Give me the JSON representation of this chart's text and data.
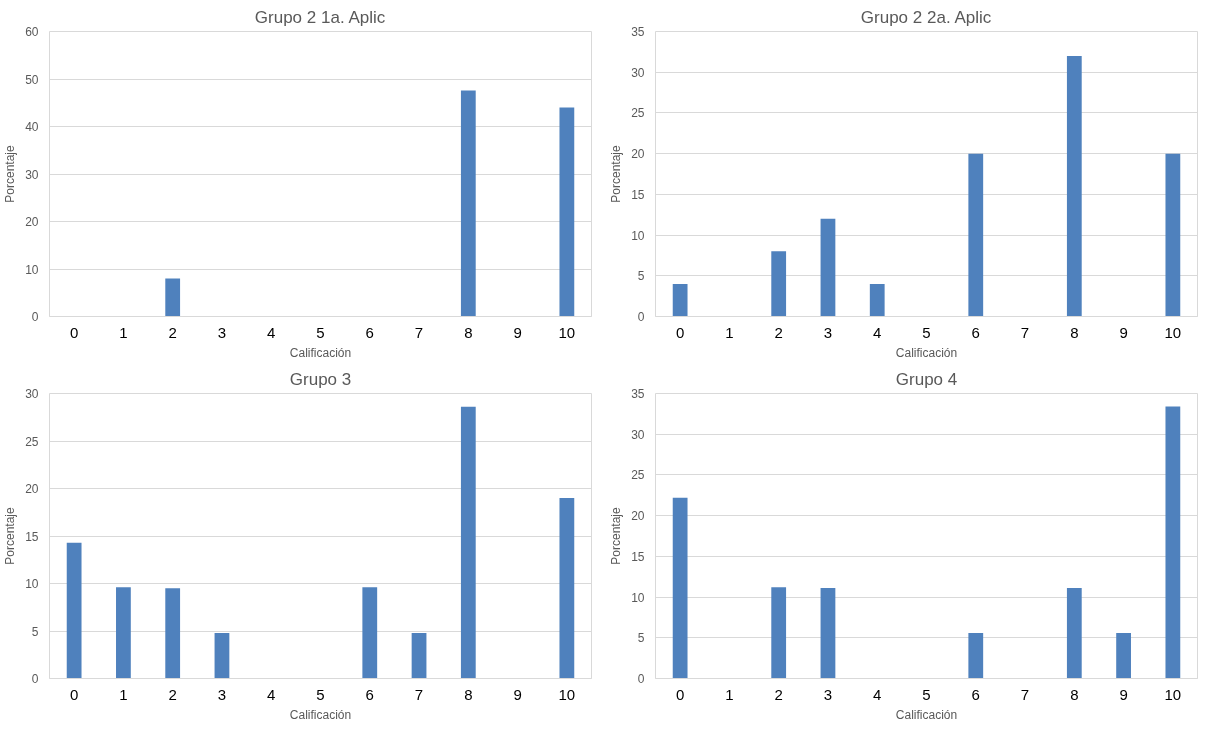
{
  "chart_data": [
    {
      "type": "bar",
      "title": "Grupo 2 1a. Aplic",
      "xlabel": "Calificación",
      "ylabel": "Porcentaje",
      "categories": [
        "0",
        "1",
        "2",
        "3",
        "4",
        "5",
        "6",
        "7",
        "8",
        "9",
        "10"
      ],
      "values": [
        0,
        0,
        8,
        0,
        0,
        0,
        0,
        0,
        47.6,
        0,
        44
      ],
      "color": "#4f81bd",
      "ylim": [
        0,
        60
      ],
      "yticks": [
        0,
        10,
        20,
        30,
        40,
        50,
        60
      ],
      "grid": "y"
    },
    {
      "type": "bar",
      "title": "Grupo 2 2a. Aplic",
      "xlabel": "Calificación",
      "ylabel": "Porcentaje",
      "categories": [
        "0",
        "1",
        "2",
        "3",
        "4",
        "5",
        "6",
        "7",
        "8",
        "9",
        "10"
      ],
      "values": [
        4,
        0,
        8,
        12,
        4,
        0,
        20,
        0,
        32,
        0,
        20
      ],
      "color": "#4f81bd",
      "ylim": [
        0,
        35
      ],
      "yticks": [
        0,
        5,
        10,
        15,
        20,
        25,
        30,
        35
      ],
      "grid": "y"
    },
    {
      "type": "bar",
      "title": "Grupo 3",
      "xlabel": "Calificación",
      "ylabel": "Porcentaje",
      "categories": [
        "0",
        "1",
        "2",
        "3",
        "4",
        "5",
        "6",
        "7",
        "8",
        "9",
        "10"
      ],
      "values": [
        14.3,
        9.6,
        9.5,
        4.8,
        0,
        0,
        9.6,
        4.8,
        28.6,
        0,
        19
      ],
      "color": "#4f81bd",
      "ylim": [
        0,
        30
      ],
      "yticks": [
        0,
        5,
        10,
        15,
        20,
        25,
        30
      ],
      "grid": "y"
    },
    {
      "type": "bar",
      "title": "Grupo 4",
      "xlabel": "Calificación",
      "ylabel": "Porcentaje",
      "categories": [
        "0",
        "1",
        "2",
        "3",
        "4",
        "5",
        "6",
        "7",
        "8",
        "9",
        "10"
      ],
      "values": [
        22.2,
        0,
        11.2,
        11.1,
        0,
        0,
        5.6,
        0,
        11.1,
        5.6,
        33.4
      ],
      "color": "#4f81bd",
      "ylim": [
        0,
        35
      ],
      "yticks": [
        0,
        5,
        10,
        15,
        20,
        25,
        30,
        35
      ],
      "grid": "y"
    }
  ]
}
